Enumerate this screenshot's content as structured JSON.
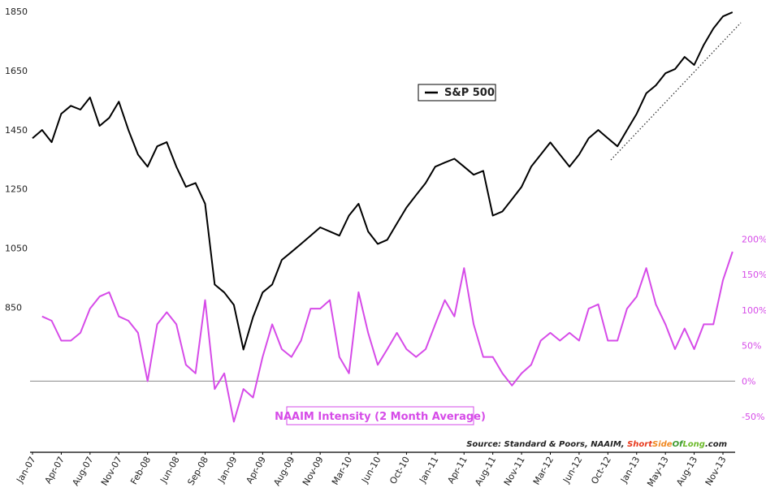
{
  "chart_data": {
    "type": "line",
    "categories": [
      "Jan-07",
      null,
      null,
      "Apr-07",
      null,
      null,
      "Aug-07",
      null,
      null,
      "Nov-07",
      null,
      null,
      "Feb-08",
      null,
      null,
      "Jun-08",
      null,
      null,
      "Sep-08",
      null,
      null,
      "Jan-09",
      null,
      null,
      "Apr-09",
      null,
      null,
      "Aug-09",
      null,
      null,
      "Nov-09",
      null,
      null,
      "Mar-10",
      null,
      null,
      "Jun-10",
      null,
      null,
      "Oct-10",
      null,
      null,
      "Jan-11",
      null,
      null,
      "Apr-11",
      null,
      null,
      "Aug-11",
      null,
      null,
      "Nov-11",
      null,
      null,
      "Mar-12",
      null,
      null,
      "Jun-12",
      null,
      null,
      "Oct-12",
      null,
      null,
      "Jan-13",
      null,
      null,
      "May-13",
      null,
      null,
      "Aug-13",
      null,
      null,
      "Nov-13",
      null
    ],
    "series": [
      {
        "name": "S&P 500",
        "color": "#000000",
        "axis": "y",
        "values": [
          1421,
          1449,
          1408,
          1504,
          1531,
          1518,
          1559,
          1463,
          1490,
          1545,
          1449,
          1366,
          1325,
          1394,
          1408,
          1325,
          1257,
          1270,
          1200,
          927,
          900,
          858,
          707,
          817,
          900,
          927,
          1010,
          1037,
          1064,
          1092,
          1120,
          1106,
          1092,
          1160,
          1200,
          1106,
          1064,
          1078,
          1133,
          1187,
          1229,
          1270,
          1325,
          1339,
          1352,
          1325,
          1298,
          1311,
          1160,
          1174,
          1215,
          1257,
          1325,
          1366,
          1407,
          1366,
          1325,
          1366,
          1421,
          1449,
          1421,
          1394,
          1449,
          1504,
          1573,
          1600,
          1641,
          1655,
          1696,
          1669,
          1737,
          1792,
          1833,
          1847
        ]
      },
      {
        "name": "NAAIM Intensity (2 Month Average)",
        "color": "#d64be8",
        "axis": "y2",
        "values": [
          null,
          91,
          85,
          57,
          57,
          68,
          102,
          119,
          125,
          91,
          85,
          68,
          0,
          80,
          97,
          80,
          23,
          11,
          114,
          -11,
          11,
          -57,
          -11,
          -23,
          34,
          80,
          45,
          34,
          57,
          102,
          102,
          114,
          34,
          11,
          125,
          68,
          23,
          45,
          68,
          45,
          34,
          45,
          80,
          114,
          91,
          159,
          80,
          34,
          34,
          11,
          -6,
          11,
          23,
          57,
          68,
          57,
          68,
          57,
          102,
          108,
          57,
          57,
          102,
          119,
          159,
          108,
          80,
          45,
          74,
          45,
          80,
          80,
          142,
          182
        ]
      }
    ],
    "ylim": [
      360,
      1850
    ],
    "yticks": [
      850,
      1050,
      1250,
      1450,
      1650,
      1850
    ],
    "y2lim": [
      -100,
      520
    ],
    "y2ticks": [
      {
        "value": -50,
        "label": "-50%"
      },
      {
        "value": 0,
        "label": "0%"
      },
      {
        "value": 50,
        "label": "50%"
      },
      {
        "value": 100,
        "label": "100%"
      },
      {
        "value": 150,
        "label": "150%"
      },
      {
        "value": 200,
        "label": "200%"
      }
    ],
    "source": {
      "text": "Source: Standard & Poors, NAAIM,",
      "site": [
        "Short",
        "Side",
        "Of",
        "Long",
        ".com"
      ]
    }
  }
}
